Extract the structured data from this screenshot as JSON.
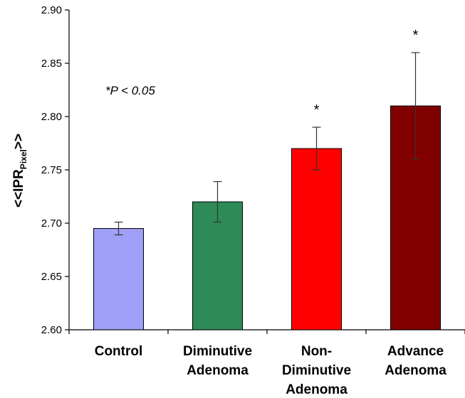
{
  "chart_data": {
    "type": "bar",
    "categories": [
      [
        "Control"
      ],
      [
        "Diminutive",
        "Adenoma"
      ],
      [
        "Non-",
        "Diminutive",
        "Adenoma"
      ],
      [
        "Advance",
        "Adenoma"
      ]
    ],
    "values": [
      2.695,
      2.72,
      2.77,
      2.81
    ],
    "error_bars": [
      0.006,
      0.019,
      0.02,
      0.05
    ],
    "colors": [
      "#a0a0f8",
      "#2e8b57",
      "#ff0000",
      "#800000"
    ],
    "significance": [
      "",
      "",
      "*",
      "*"
    ],
    "ylim": [
      2.6,
      2.9
    ],
    "yticks": [
      "2.60",
      "2.65",
      "2.70",
      "2.75",
      "2.80",
      "2.85",
      "2.90"
    ],
    "ylabel": {
      "main": "<<IPR",
      "subscript": "Pixel",
      "suffix": ">>"
    },
    "annotation": "*P < 0.05",
    "grid": false
  }
}
